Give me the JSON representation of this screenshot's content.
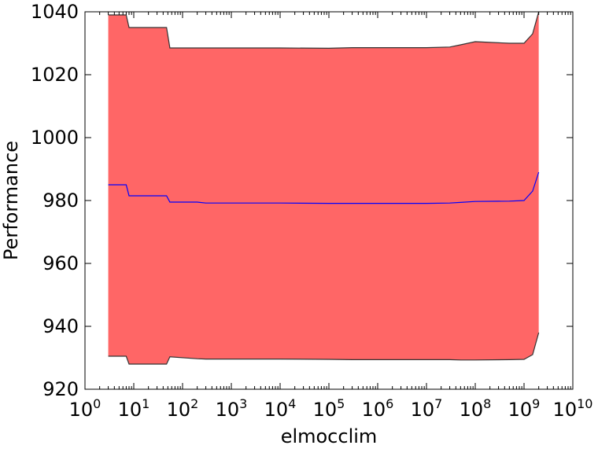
{
  "chart_data": {
    "type": "area",
    "title": "",
    "xlabel": "elmocclim",
    "ylabel": "Performance",
    "xscale": "log",
    "xlim": [
      1,
      10000000000
    ],
    "ylim": [
      920,
      1040
    ],
    "grid": false,
    "legend": "none",
    "x_ticks": [
      {
        "base": "10",
        "exp": "0"
      },
      {
        "base": "10",
        "exp": "1"
      },
      {
        "base": "10",
        "exp": "2"
      },
      {
        "base": "10",
        "exp": "3"
      },
      {
        "base": "10",
        "exp": "4"
      },
      {
        "base": "10",
        "exp": "5"
      },
      {
        "base": "10",
        "exp": "6"
      },
      {
        "base": "10",
        "exp": "7"
      },
      {
        "base": "10",
        "exp": "8"
      },
      {
        "base": "10",
        "exp": "9"
      },
      {
        "base": "10",
        "exp": "10"
      }
    ],
    "y_ticks": [
      "920",
      "940",
      "960",
      "980",
      "1000",
      "1020",
      "1040"
    ],
    "x": [
      3,
      7,
      8,
      47,
      55,
      200,
      300,
      1000,
      10000,
      100000,
      300000,
      1000000,
      10000000,
      30000000,
      50000000,
      100000000,
      500000000,
      1000000000,
      1500000000,
      2000000000
    ],
    "series": [
      {
        "role": "mean",
        "values": [
          985,
          985,
          981.5,
          981.5,
          979.5,
          979.5,
          979.2,
          979.2,
          979.2,
          979.1,
          979.1,
          979.1,
          979.1,
          979.2,
          979.4,
          979.7,
          979.8,
          980,
          983,
          989
        ],
        "color": "#0000ff"
      },
      {
        "role": "upper",
        "values": [
          1039,
          1039,
          1035,
          1035,
          1028.5,
          1028.5,
          1028.5,
          1028.5,
          1028.5,
          1028.4,
          1028.6,
          1028.6,
          1028.6,
          1028.8,
          1029.5,
          1030.5,
          1030,
          1030,
          1033,
          1040
        ],
        "color": "#333333"
      },
      {
        "role": "lower",
        "values": [
          930.5,
          930.5,
          928,
          928,
          930.3,
          929.7,
          929.6,
          929.6,
          929.6,
          929.5,
          929.4,
          929.4,
          929.4,
          929.4,
          929.3,
          929.3,
          929.4,
          929.5,
          931,
          938
        ],
        "color": "#333333"
      }
    ],
    "fill_color": "#ff6666",
    "axis_color": "#000000"
  }
}
